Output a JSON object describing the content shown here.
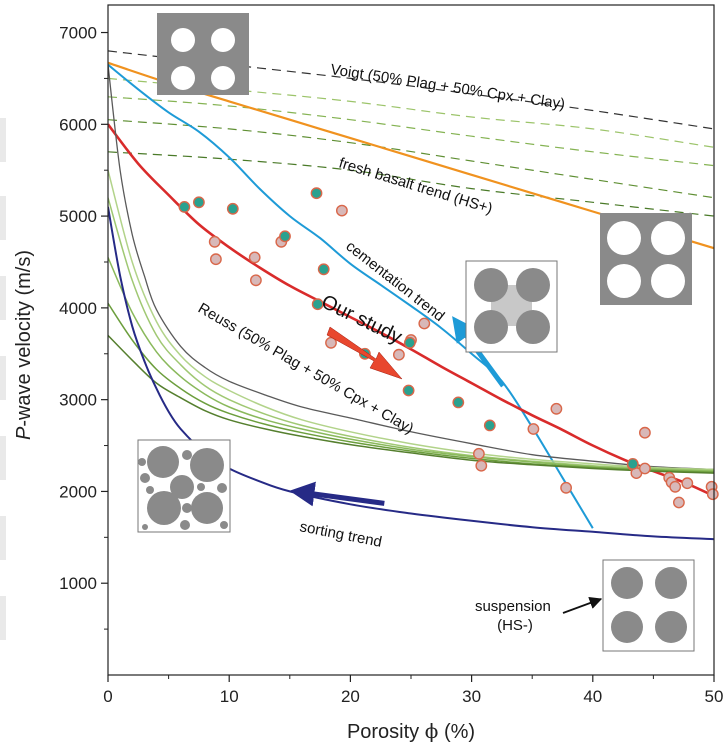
{
  "chart_data": {
    "type": "scatter",
    "xlabel_prefix": "Porosity ",
    "xlabel_symbol": "ϕ",
    "xlabel_suffix": " (%)",
    "ylabel_prefix": "P",
    "ylabel_suffix": "-wave velocity (m/s)",
    "xlim": [
      0,
      50
    ],
    "ylim": [
      0,
      7300
    ],
    "x_ticks": [
      0,
      10,
      20,
      30,
      40,
      50
    ],
    "x_tick_labels": [
      "0",
      "10",
      "20",
      "30",
      "40",
      "50"
    ],
    "y_ticks": [
      1000,
      2000,
      3000,
      4000,
      5000,
      6000,
      7000
    ],
    "y_tick_labels": [
      "1000",
      "2000",
      "3000",
      "4000",
      "5000",
      "6000",
      "7000"
    ],
    "grid": false,
    "colors": {
      "voigt": "#333333",
      "hs_upper_family": "#6e9a3c",
      "fresh_basalt": "#f0921f",
      "cementation": "#1e9bd7",
      "our_study": "#d92b2b",
      "reuss": "#5a5a5a",
      "reuss_family": "#7fae45",
      "sorting": "#262a86",
      "teal_point_fill": "#2aa18f",
      "pink_point_fill": "#d8b8b8",
      "point_edge": "#d9674a",
      "grain_grey": "#8c8c8c",
      "annotation_arrow": "#e8472e"
    },
    "annotations": {
      "voigt": "Voigt (50% Plag + 50% Cpx + Clay)",
      "fresh_basalt": "fresh basalt trend (HS+)",
      "cementation": "cementation trend",
      "our_study": "Our study",
      "reuss": "Reuss (50% Plag + 50% Cpx + Clay)",
      "sorting": "sorting trend",
      "suspension_line1": "suspension",
      "suspension_line2": "(HS-)"
    },
    "series": [
      {
        "role": "voigt",
        "x": [
          0,
          10,
          20,
          30,
          40,
          50
        ],
        "y": [
          6800,
          6650,
          6500,
          6330,
          6150,
          5950
        ]
      },
      {
        "role": "hs_upper_1",
        "x": [
          0,
          10,
          20,
          30,
          40,
          50
        ],
        "y": [
          6500,
          6380,
          6250,
          6080,
          5950,
          5750
        ]
      },
      {
        "role": "hs_upper_2",
        "x": [
          0,
          10,
          20,
          30,
          40,
          50
        ],
        "y": [
          6300,
          6200,
          6050,
          5870,
          5700,
          5550
        ]
      },
      {
        "role": "hs_upper_3",
        "x": [
          0,
          10,
          20,
          30,
          40,
          50
        ],
        "y": [
          6050,
          5950,
          5800,
          5600,
          5400,
          5200
        ]
      },
      {
        "role": "hs_upper_4",
        "x": [
          0,
          10,
          20,
          30,
          40,
          50
        ],
        "y": [
          5700,
          5620,
          5500,
          5300,
          5150,
          5000
        ]
      },
      {
        "role": "fresh_basalt",
        "x": [
          0,
          5,
          10,
          15,
          20,
          25,
          30,
          35,
          40,
          45,
          50
        ],
        "y": [
          6670,
          6450,
          6250,
          6050,
          5850,
          5650,
          5450,
          5250,
          5050,
          4850,
          4650
        ]
      },
      {
        "role": "cementation",
        "x": [
          0,
          2.5,
          5,
          7.5,
          10,
          12.5,
          15,
          17.5,
          20,
          22.5,
          25,
          27.5,
          30,
          32.5,
          35,
          37.5,
          40
        ],
        "y": [
          6650,
          6380,
          6130,
          5920,
          5640,
          5300,
          5000,
          4760,
          4480,
          4250,
          4020,
          3780,
          3500,
          3200,
          2700,
          2150,
          1600
        ]
      },
      {
        "role": "our_study_trend",
        "x": [
          0,
          2.5,
          5,
          7.5,
          10,
          12.5,
          15,
          17.5,
          20,
          22.5,
          25,
          27.5,
          30,
          32.5,
          35,
          37.5,
          40,
          42.5,
          45,
          47.5,
          50
        ],
        "y": [
          6000,
          5570,
          5230,
          4910,
          4660,
          4440,
          4240,
          4070,
          3900,
          3730,
          3550,
          3360,
          3180,
          3000,
          2830,
          2670,
          2500,
          2350,
          2220,
          2100,
          1950
        ]
      },
      {
        "role": "reuss",
        "x": [
          0,
          1,
          2,
          3,
          4,
          6,
          8,
          10,
          13,
          16,
          20,
          25,
          30,
          35,
          40,
          45,
          50
        ],
        "y": [
          6650,
          5500,
          4800,
          4350,
          3980,
          3580,
          3350,
          3200,
          3050,
          2920,
          2800,
          2650,
          2520,
          2400,
          2330,
          2270,
          2240
        ]
      },
      {
        "role": "reuss_family_1",
        "x": [
          0,
          2,
          4,
          6,
          8,
          10,
          13,
          16,
          20,
          25,
          30,
          35,
          40,
          45,
          50
        ],
        "y": [
          5500,
          4500,
          3850,
          3480,
          3250,
          3100,
          2920,
          2780,
          2650,
          2520,
          2420,
          2350,
          2300,
          2260,
          2240
        ]
      },
      {
        "role": "reuss_family_2",
        "x": [
          0,
          2,
          4,
          6,
          8,
          10,
          13,
          16,
          20,
          25,
          30,
          35,
          40,
          45,
          50
        ],
        "y": [
          5200,
          4300,
          3700,
          3380,
          3150,
          3000,
          2840,
          2720,
          2600,
          2480,
          2390,
          2330,
          2280,
          2250,
          2230
        ]
      },
      {
        "role": "reuss_family_3",
        "x": [
          0,
          2,
          4,
          6,
          8,
          10,
          13,
          16,
          20,
          25,
          30,
          35,
          40,
          45,
          50
        ],
        "y": [
          4550,
          3950,
          3520,
          3250,
          3060,
          2920,
          2780,
          2680,
          2570,
          2460,
          2380,
          2320,
          2270,
          2240,
          2220
        ]
      },
      {
        "role": "reuss_family_4",
        "x": [
          0,
          2,
          4,
          6,
          8,
          10,
          13,
          16,
          20,
          25,
          30,
          35,
          40,
          45,
          50
        ],
        "y": [
          4050,
          3650,
          3330,
          3120,
          2960,
          2850,
          2730,
          2640,
          2540,
          2440,
          2360,
          2300,
          2260,
          2230,
          2210
        ]
      },
      {
        "role": "reuss_family_5",
        "x": [
          0,
          2,
          4,
          6,
          8,
          10,
          13,
          16,
          20,
          25,
          30,
          35,
          40,
          45,
          50
        ],
        "y": [
          3700,
          3430,
          3180,
          3020,
          2880,
          2780,
          2680,
          2600,
          2510,
          2420,
          2340,
          2290,
          2250,
          2220,
          2200
        ]
      },
      {
        "role": "sorting",
        "x": [
          0,
          1,
          2,
          3,
          4,
          5,
          6,
          8,
          10,
          12.5,
          15,
          20,
          25,
          30,
          35,
          40,
          45,
          50
        ],
        "y": [
          5100,
          4350,
          3800,
          3420,
          3120,
          2870,
          2680,
          2420,
          2250,
          2110,
          2000,
          1860,
          1760,
          1680,
          1610,
          1560,
          1510,
          1480
        ]
      }
    ],
    "points_teal": {
      "x": [
        6.3,
        7.5,
        10.3,
        14.6,
        17.2,
        17.8,
        17.3,
        21.2,
        24.9,
        24.8,
        28.9,
        31.5,
        43.3
      ],
      "y": [
        5100,
        5150,
        5080,
        4780,
        5250,
        4420,
        4040,
        3500,
        3620,
        3100,
        2970,
        2720,
        2300
      ]
    },
    "points_pink": {
      "x": [
        8.8,
        8.9,
        12.1,
        12.2,
        14.3,
        18.4,
        19.3,
        24.0,
        25.0,
        26.1,
        30.6,
        30.8,
        32.0,
        35.1,
        37.0,
        37.8,
        43.3,
        43.6,
        44.3,
        44.3,
        46.3,
        46.5,
        46.8,
        47.1,
        47.8,
        49.8,
        49.9
      ],
      "y": [
        4720,
        4530,
        4550,
        4300,
        4720,
        3620,
        5060,
        3490,
        3650,
        3830,
        2410,
        2280,
        3610,
        2680,
        2900,
        2040,
        2290,
        2200,
        2640,
        2250,
        2150,
        2100,
        2050,
        1880,
        2090,
        2050,
        1970
      ]
    }
  }
}
